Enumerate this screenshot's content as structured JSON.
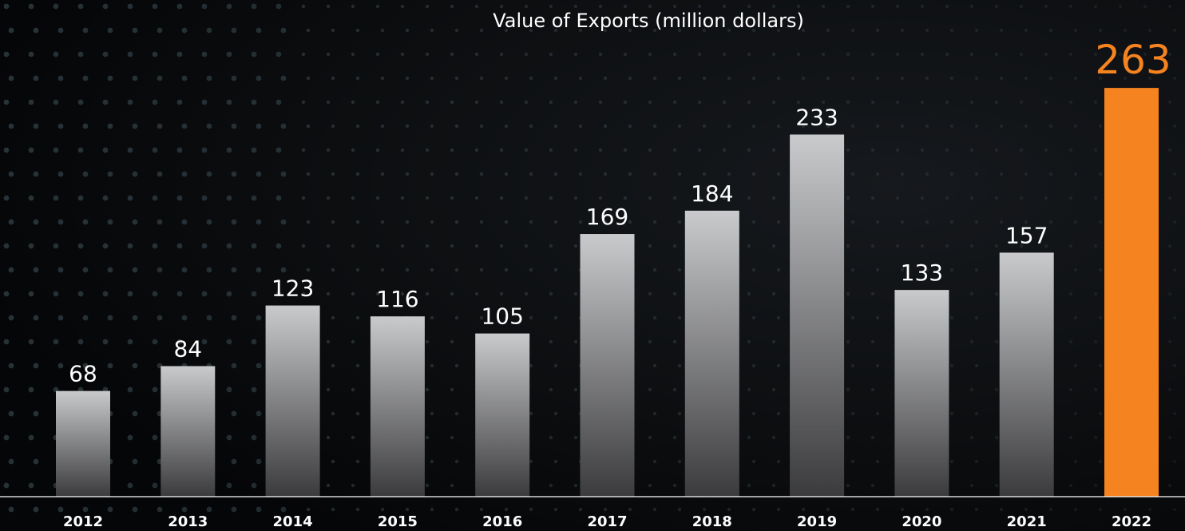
{
  "chart_data": {
    "type": "bar",
    "title": "Value of Exports (million dollars)",
    "categories": [
      "2012",
      "2013",
      "2014",
      "2015",
      "2016",
      "2017",
      "2018",
      "2019",
      "2020",
      "2021",
      "2022"
    ],
    "values": [
      68,
      84,
      123,
      116,
      105,
      169,
      184,
      233,
      133,
      157,
      263
    ],
    "value_labels": [
      "68",
      "84",
      "123",
      "116",
      "105",
      "169",
      "184",
      "233",
      "133",
      "157",
      "263"
    ],
    "highlight_index": 10,
    "ylim": [
      0,
      280
    ],
    "grid": false,
    "legend": "none",
    "colors": {
      "bar_top": "#c9cacc",
      "bar_bottom": "#3b3b3d",
      "highlight": "#f5831f",
      "background": "#0a0b0d",
      "dots": "#6f8f9a"
    }
  }
}
